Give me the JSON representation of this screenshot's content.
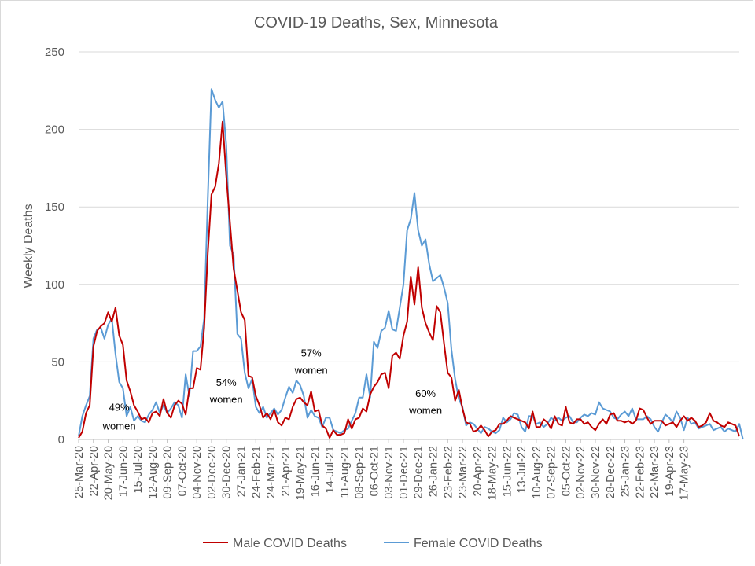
{
  "chart_data": {
    "type": "line",
    "title": "COVID-19 Deaths, Sex, Minnesota",
    "ylabel": "Weekly Deaths",
    "xlabel": "",
    "ylim": [
      0,
      250
    ],
    "yticks": [
      0,
      50,
      100,
      150,
      200,
      250
    ],
    "grid": "horizontal",
    "legend_position": "bottom",
    "x_tick_labels": [
      "25-Mar-20",
      "22-Apr-20",
      "20-May-20",
      "17-Jun-20",
      "15-Jul-20",
      "12-Aug-20",
      "09-Sep-20",
      "07-Oct-20",
      "04-Nov-20",
      "02-Dec-20",
      "30-Dec-20",
      "27-Jan-21",
      "24-Feb-21",
      "24-Mar-21",
      "21-Apr-21",
      "19-May-21",
      "16-Jun-21",
      "14-Jul-21",
      "11-Aug-21",
      "08-Sep-21",
      "06-Oct-21",
      "03-Nov-21",
      "01-Dec-21",
      "29-Dec-21",
      "26-Jan-22",
      "23-Feb-22",
      "23-Mar-22",
      "20-Apr-22",
      "18-May-22",
      "15-Jun-22",
      "13-Jul-22",
      "10-Aug-22",
      "07-Sep-22",
      "05-Oct-22",
      "02-Nov-22",
      "30-Nov-22",
      "28-Dec-22",
      "25-Jan-23",
      "22-Feb-23",
      "22-Mar-23",
      "19-Apr-23",
      "17-May-23"
    ],
    "series": [
      {
        "name": "Male COVID Deaths",
        "color": "#c00000",
        "values": [
          1,
          5,
          17,
          22,
          60,
          70,
          73,
          75,
          82,
          76,
          85,
          67,
          61,
          38,
          31,
          22,
          18,
          13,
          14,
          11,
          17,
          18,
          15,
          26,
          17,
          14,
          22,
          25,
          23,
          16,
          33,
          33,
          46,
          45,
          72,
          120,
          158,
          163,
          178,
          205,
          170,
          140,
          110,
          96,
          82,
          77,
          41,
          40,
          28,
          22,
          14,
          17,
          13,
          19,
          11,
          9,
          14,
          13,
          21,
          26,
          27,
          24,
          22,
          31,
          18,
          19,
          9,
          7,
          1,
          6,
          3,
          3,
          4,
          13,
          7,
          13,
          14,
          20,
          18,
          29,
          34,
          37,
          42,
          43,
          33,
          54,
          56,
          52,
          67,
          76,
          105,
          87,
          111,
          85,
          75,
          69,
          64,
          86,
          82,
          62,
          43,
          40,
          25,
          32,
          20,
          11,
          10,
          5,
          6,
          9,
          6,
          2,
          5,
          6,
          10,
          10,
          12,
          15,
          14,
          13,
          12,
          11,
          7,
          18,
          8,
          8,
          13,
          11,
          7,
          15,
          10,
          9,
          21,
          11,
          10,
          13,
          13,
          10,
          11,
          8,
          6,
          10,
          13,
          10,
          16,
          17,
          12,
          12,
          11,
          12,
          10,
          12,
          20,
          19,
          14,
          10,
          12,
          12,
          12,
          9,
          10,
          11,
          8,
          12,
          15,
          12,
          14,
          12,
          8,
          9,
          11,
          17,
          12,
          11,
          9,
          8,
          11,
          10,
          9,
          2
        ]
      },
      {
        "name": "Female COVID Deaths",
        "color": "#5b9bd5",
        "values": [
          2,
          15,
          22,
          28,
          65,
          71,
          72,
          65,
          74,
          78,
          55,
          37,
          33,
          15,
          21,
          12,
          15,
          12,
          11,
          16,
          19,
          24,
          17,
          22,
          17,
          20,
          24,
          22,
          14,
          42,
          28,
          57,
          57,
          60,
          78,
          155,
          226,
          219,
          214,
          218,
          190,
          125,
          119,
          68,
          65,
          43,
          33,
          39,
          21,
          17,
          21,
          14,
          17,
          20,
          16,
          19,
          27,
          34,
          30,
          38,
          35,
          28,
          14,
          19,
          15,
          14,
          8,
          14,
          14,
          6,
          5,
          4,
          6,
          7,
          12,
          17,
          27,
          27,
          42,
          27,
          63,
          59,
          70,
          72,
          83,
          71,
          70,
          85,
          100,
          135,
          142,
          159,
          135,
          125,
          129,
          113,
          102,
          104,
          106,
          98,
          88,
          58,
          39,
          26,
          21,
          9,
          11,
          10,
          7,
          4,
          8,
          7,
          5,
          4,
          6,
          14,
          11,
          13,
          17,
          16,
          8,
          5,
          15,
          15,
          10,
          11,
          8,
          10,
          14,
          12,
          14,
          12,
          14,
          15,
          11,
          11,
          14,
          16,
          15,
          17,
          16,
          24,
          20,
          19,
          18,
          14,
          13,
          16,
          18,
          15,
          20,
          13,
          13,
          13,
          15,
          13,
          8,
          5,
          11,
          16,
          14,
          11,
          18,
          14,
          6,
          14,
          10,
          11,
          7,
          8,
          9,
          10,
          6,
          7,
          8,
          5,
          7,
          6,
          5,
          10,
          0
        ]
      }
    ],
    "annotations": [
      {
        "line1": "49%",
        "line2": "women",
        "x_index": 11,
        "y1": 21,
        "y2": 9
      },
      {
        "line1": "54%",
        "line2": "women",
        "x_index": 40,
        "y1": 37,
        "y2": 26
      },
      {
        "line1": "57%",
        "line2": "women",
        "x_index": 63,
        "y1": 56,
        "y2": 45
      },
      {
        "line1": "60%",
        "line2": "women",
        "x_index": 94,
        "y1": 30,
        "y2": 19
      }
    ]
  }
}
